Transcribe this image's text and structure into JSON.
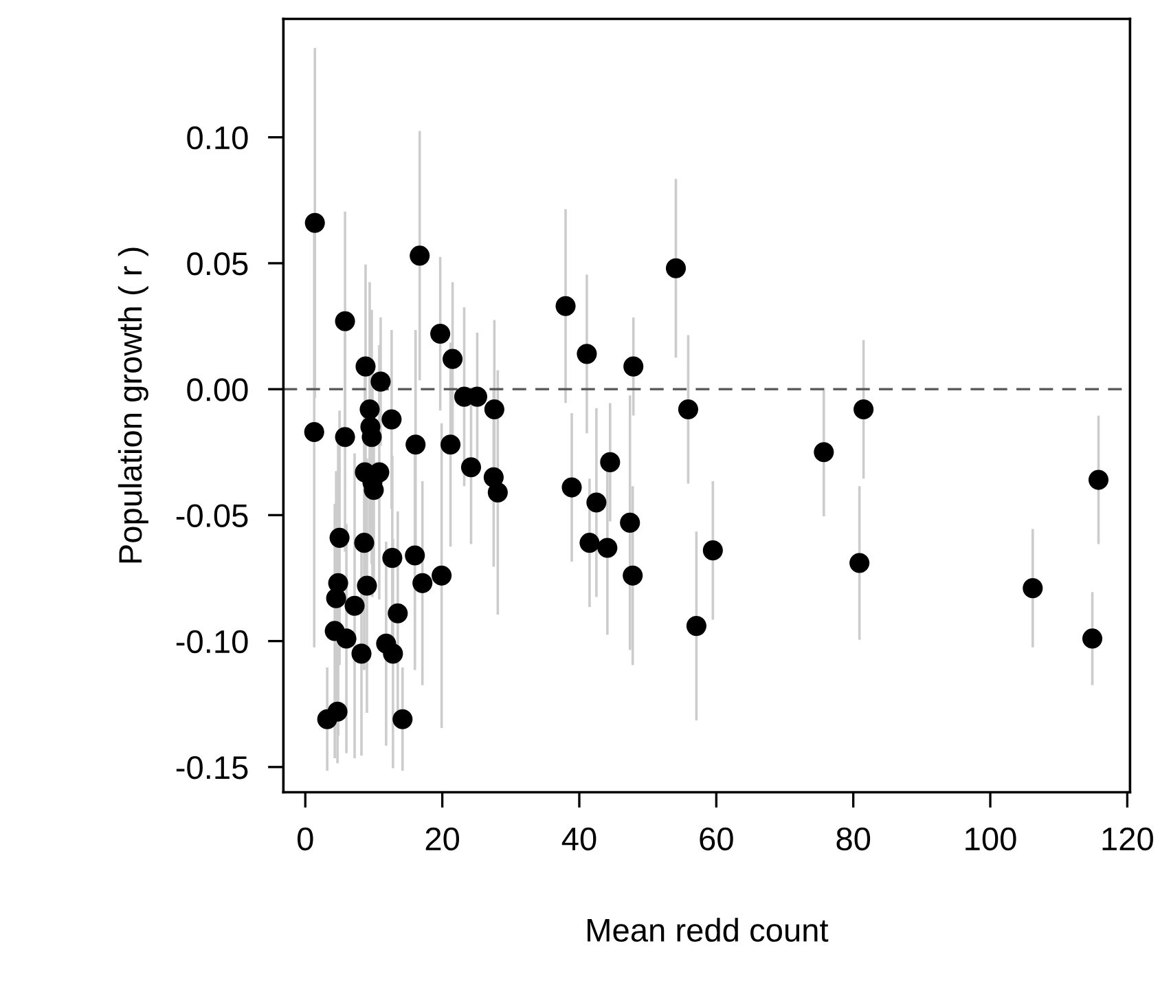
{
  "chart_data": {
    "type": "scatter",
    "xlabel": "Mean redd count",
    "ylabel": "Population growth ( r )",
    "xlim": [
      -3.2,
      120.4
    ],
    "ylim": [
      -0.16,
      0.147
    ],
    "xticks": [
      0,
      20,
      40,
      60,
      80,
      100,
      120
    ],
    "yticks": [
      {
        "value": 0.1,
        "label": "0.10"
      },
      {
        "value": 0.05,
        "label": "0.05"
      },
      {
        "value": 0,
        "label": "0.00"
      },
      {
        "value": -0.05,
        "label": "-0.05"
      },
      {
        "value": -0.1,
        "label": "-0.10"
      },
      {
        "value": -0.15,
        "label": "-0.15"
      }
    ],
    "grid": false,
    "marker": "circle",
    "ref_lines": [
      {
        "axis": "y",
        "value": 0,
        "color": "#555555",
        "line_style": "dashed"
      }
    ],
    "series": [
      {
        "color": "#000000",
        "x": [
          1.4,
          1.3,
          5.8,
          8.8,
          11.0,
          9.4,
          9.5,
          9.7,
          12.6,
          5.8,
          16.1,
          21.2,
          24.2,
          8.7,
          10.8,
          10.0,
          9.8,
          5.0,
          8.6,
          12.7,
          16.0,
          4.8,
          9.0,
          17.1,
          19.9,
          4.5,
          7.2,
          13.5,
          4.3,
          6.0,
          8.2,
          11.8,
          12.8,
          3.2,
          4.7,
          14.2,
          16.7,
          19.7,
          21.5,
          23.2,
          25.1,
          27.6,
          27.5,
          28.1,
          38.0,
          41.1,
          47.9,
          54.1,
          55.9,
          38.9,
          42.5,
          44.5,
          41.5,
          44.1,
          47.4,
          47.8,
          57.1,
          59.5,
          75.7,
          81.5,
          80.9,
          106.2,
          115.8,
          114.9
        ],
        "values": [
          0.066,
          -0.017,
          0.027,
          0.009,
          0.003,
          -0.008,
          -0.015,
          -0.019,
          -0.012,
          -0.019,
          -0.022,
          -0.022,
          -0.031,
          -0.033,
          -0.033,
          -0.04,
          -0.037,
          -0.059,
          -0.061,
          -0.067,
          -0.066,
          -0.077,
          -0.078,
          -0.077,
          -0.074,
          -0.083,
          -0.086,
          -0.089,
          -0.096,
          -0.099,
          -0.105,
          -0.101,
          -0.105,
          -0.131,
          -0.128,
          -0.131,
          0.053,
          0.022,
          0.012,
          -0.003,
          -0.003,
          -0.008,
          -0.035,
          -0.041,
          0.033,
          0.014,
          0.009,
          0.048,
          -0.008,
          -0.039,
          -0.045,
          -0.029,
          -0.061,
          -0.063,
          -0.053,
          -0.074,
          -0.094,
          -0.064,
          -0.025,
          -0.008,
          -0.069,
          -0.079,
          -0.036,
          -0.099
        ],
        "errors": [
          0.069,
          0.085,
          0.043,
          0.04,
          0.025,
          0.05,
          0.045,
          0.05,
          0.035,
          0.045,
          0.045,
          0.04,
          0.03,
          0.04,
          0.05,
          0.035,
          0.045,
          0.05,
          0.05,
          0.04,
          0.045,
          0.06,
          0.05,
          0.04,
          0.06,
          0.05,
          0.06,
          0.04,
          0.05,
          0.045,
          0.04,
          0.04,
          0.045,
          0.02,
          0.02,
          0.02,
          0.049,
          0.03,
          0.03,
          0.035,
          0.025,
          0.035,
          0.035,
          0.048,
          0.038,
          0.031,
          0.019,
          0.035,
          0.029,
          0.029,
          0.037,
          0.023,
          0.025,
          0.034,
          0.05,
          0.035,
          0.037,
          0.027,
          0.025,
          0.027,
          0.03,
          0.023,
          0.025,
          0.018
        ]
      }
    ]
  }
}
